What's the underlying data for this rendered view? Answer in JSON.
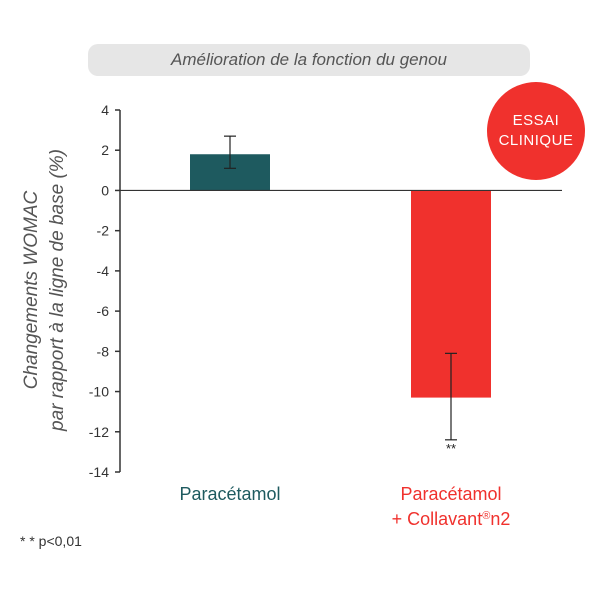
{
  "chart_data": {
    "type": "bar",
    "title": "Amélioration de la fonction du genou",
    "ylabel_lines": [
      "Changements WOMAC",
      "par rapport à la ligne de base (%)"
    ],
    "categories": [
      {
        "lines": [
          "Paracétamol"
        ],
        "color": "#1e5a5f"
      },
      {
        "lines": [
          "Paracétamol",
          "+ Collavant®n2"
        ],
        "color": "#f0312d"
      }
    ],
    "values": [
      1.8,
      -10.3
    ],
    "error_low": [
      1.1,
      -12.4
    ],
    "error_high": [
      2.7,
      -8.1
    ],
    "annotations": [
      "",
      "**"
    ],
    "ylim": [
      -14,
      4
    ],
    "yticks": [
      4,
      2,
      0,
      -2,
      -4,
      -6,
      -8,
      -10,
      -12,
      -14
    ],
    "grid": false,
    "legend": "none"
  },
  "badge": {
    "line1": "ESSAI",
    "line2": "CLINIQUE",
    "color": "#f0312d"
  },
  "footnote": "* * p<0,01"
}
